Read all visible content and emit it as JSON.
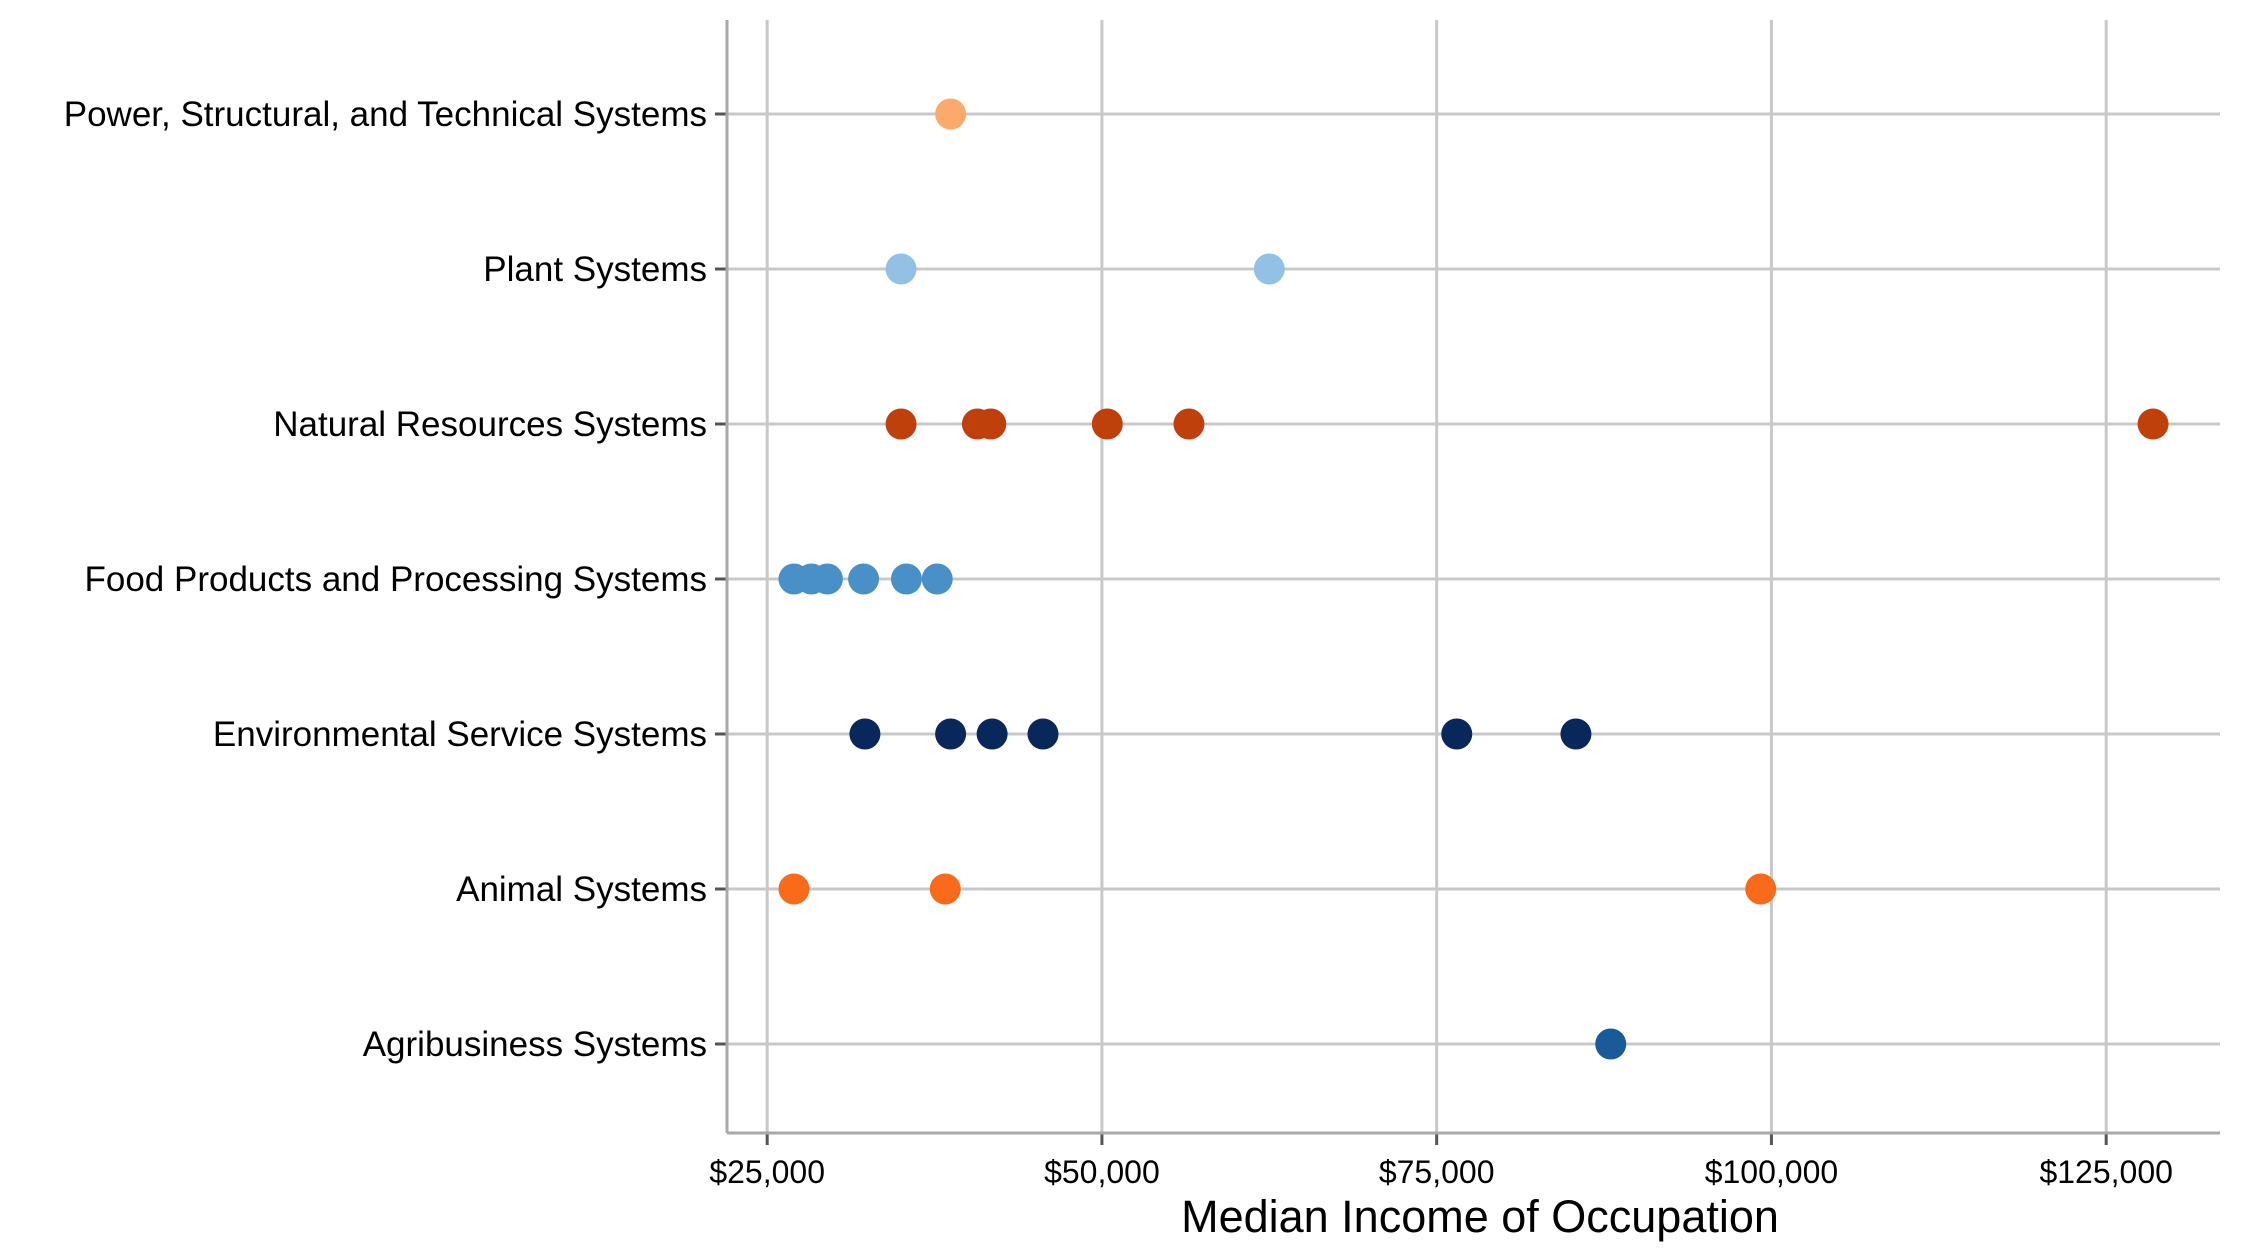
{
  "chart_data": {
    "type": "scatter",
    "title": "",
    "xlabel": "Median Income of Occupation",
    "ylabel": "",
    "xlim": [
      22000,
      133500
    ],
    "xticks": [
      25000,
      50000,
      75000,
      100000,
      125000
    ],
    "xtick_labels": [
      "$25,000",
      "$50,000",
      "$75,000",
      "$100,000",
      "$125,000"
    ],
    "grid": true,
    "legend": "none",
    "categories": [
      "Agribusiness Systems",
      "Animal Systems",
      "Environmental Service Systems",
      "Food Products and Processing Systems",
      "Natural Resources Systems",
      "Plant Systems",
      "Power, Structural, and Technical Systems"
    ],
    "series": [
      {
        "category": "Agribusiness Systems",
        "color": "#1a5a99",
        "values": [
          88000
        ]
      },
      {
        "category": "Animal Systems",
        "color": "#f96a1b",
        "values": [
          27000,
          38300,
          99200
        ]
      },
      {
        "category": "Environmental Service Systems",
        "color": "#08275a",
        "values": [
          32300,
          38700,
          41800,
          45600,
          76500,
          85400
        ]
      },
      {
        "category": "Food Products and Processing Systems",
        "color": "#4a90c8",
        "values": [
          27000,
          28300,
          29500,
          32200,
          35400,
          37700
        ]
      },
      {
        "category": "Natural Resources Systems",
        "color": "#c0400c",
        "values": [
          35000,
          40700,
          41700,
          50400,
          56500,
          128500
        ]
      },
      {
        "category": "Plant Systems",
        "color": "#93c1e6",
        "values": [
          35000,
          62500
        ]
      },
      {
        "category": "Power, Structural, and Technical Systems",
        "color": "#fbaa6c",
        "values": [
          38700
        ]
      }
    ]
  }
}
